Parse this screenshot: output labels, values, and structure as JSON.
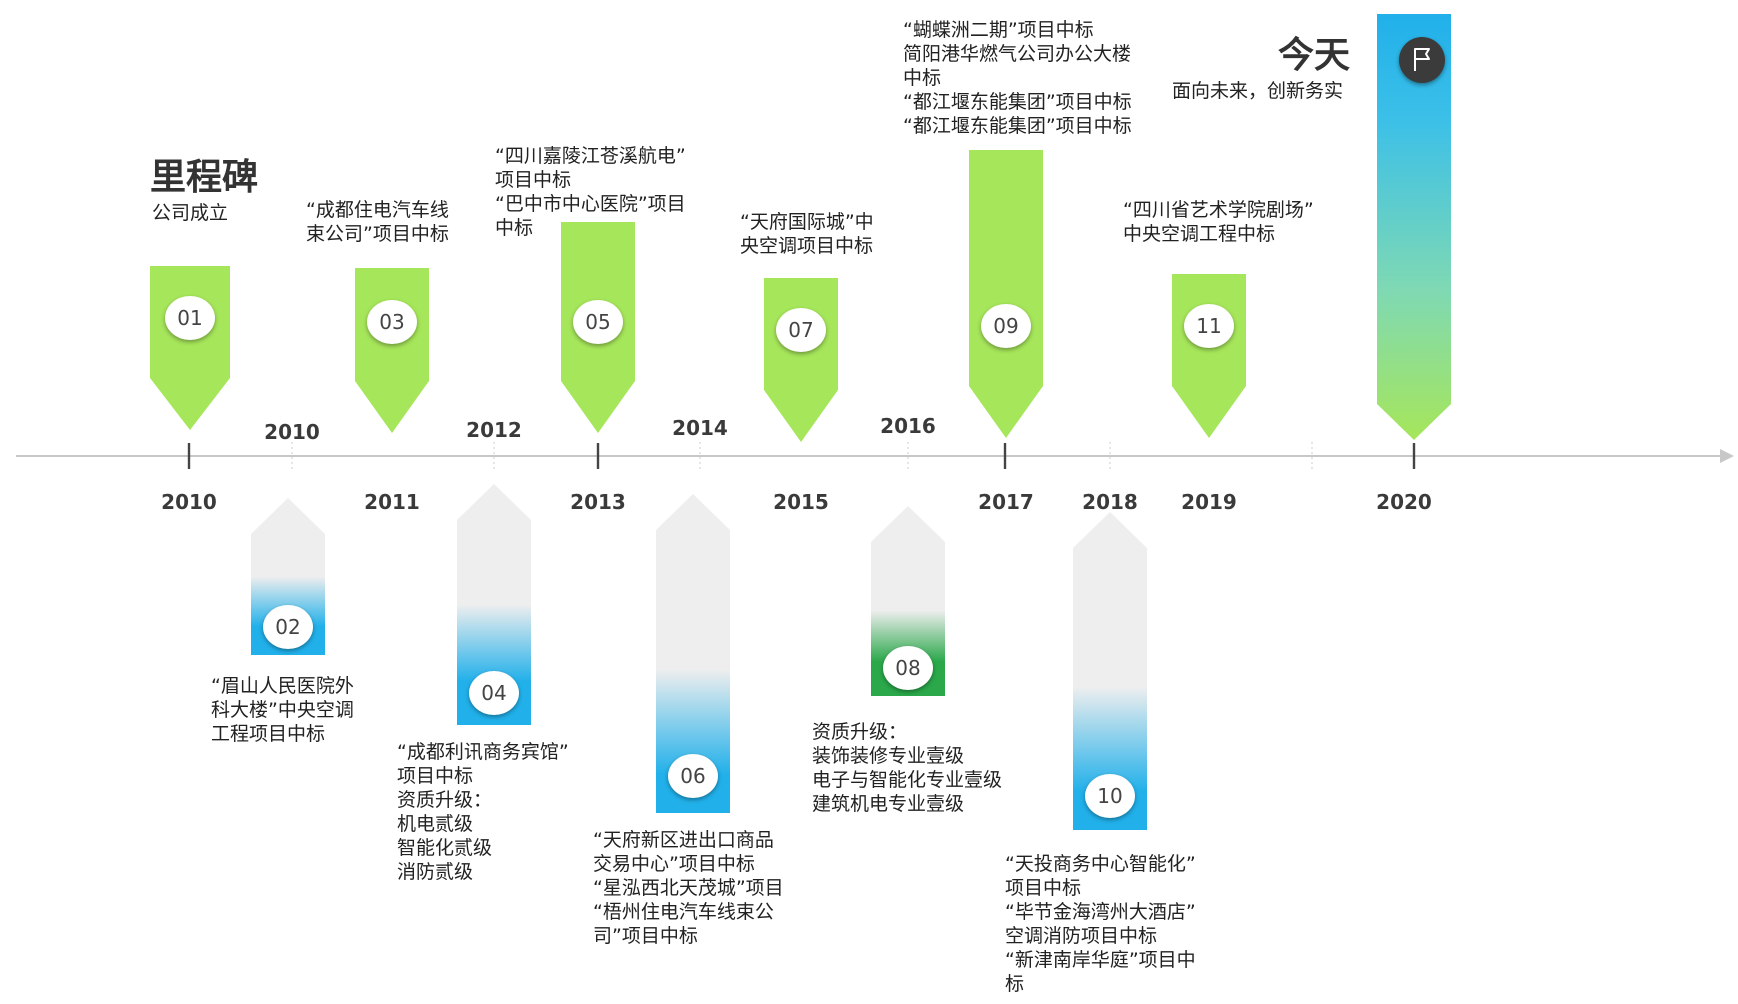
{
  "header": {
    "title": "里程碑",
    "subtitle": "公司成立",
    "today_title": "今天",
    "today_subtitle": "面向未来，创新务实"
  },
  "years_below_axis": [
    "2010",
    "2011",
    "2013",
    "2015",
    "2017",
    "2018",
    "2019",
    "2020"
  ],
  "years_above_axis": [
    "2010",
    "2012",
    "2014",
    "2016"
  ],
  "milestones": [
    {
      "num": "01",
      "text": ""
    },
    {
      "num": "02",
      "text": "“眉山人民医院外\n科大楼”中央空调\n工程项目中标"
    },
    {
      "num": "03",
      "text": "“成都住电汽车线\n束公司”项目中标"
    },
    {
      "num": "04",
      "text": "“成都利讯商务宾馆”\n项目中标\n资质升级：\n机电贰级\n智能化贰级\n消防贰级"
    },
    {
      "num": "05",
      "text": "“四川嘉陵江苍溪航电”\n项目中标\n“巴中市中心医院”项目\n中标"
    },
    {
      "num": "06",
      "text": "“天府新区进出口商品\n交易中心”项目中标\n“星泓西北天茂城”项目\n“梧州住电汽车线束公\n司”项目中标"
    },
    {
      "num": "07",
      "text": "“天府国际城”中\n央空调项目中标"
    },
    {
      "num": "08",
      "text": "资质升级：\n装饰装修专业壹级\n电子与智能化专业壹级\n建筑机电专业壹级"
    },
    {
      "num": "09",
      "text": "“蝴蝶洲二期”项目中标\n简阳港华燃气公司办公大楼\n中标\n“都江堰东能集团”项目中标\n“都江堰东能集团”项目中标"
    },
    {
      "num": "10",
      "text": "“天投商务中心智能化”\n项目中标\n“毕节金海湾州大酒店”\n空调消防项目中标\n“新津南岸华庭”项目中\n标"
    },
    {
      "num": "11",
      "text": "“四川省艺术学院剧场”\n中央空调工程中标"
    }
  ],
  "today_icon": "flag-icon",
  "colors": {
    "green": "#a6e65a",
    "blue": "#21b0ea",
    "dark_green": "#2aa84a",
    "grey": "#eeeeee",
    "axis": "#c8c8c8"
  }
}
